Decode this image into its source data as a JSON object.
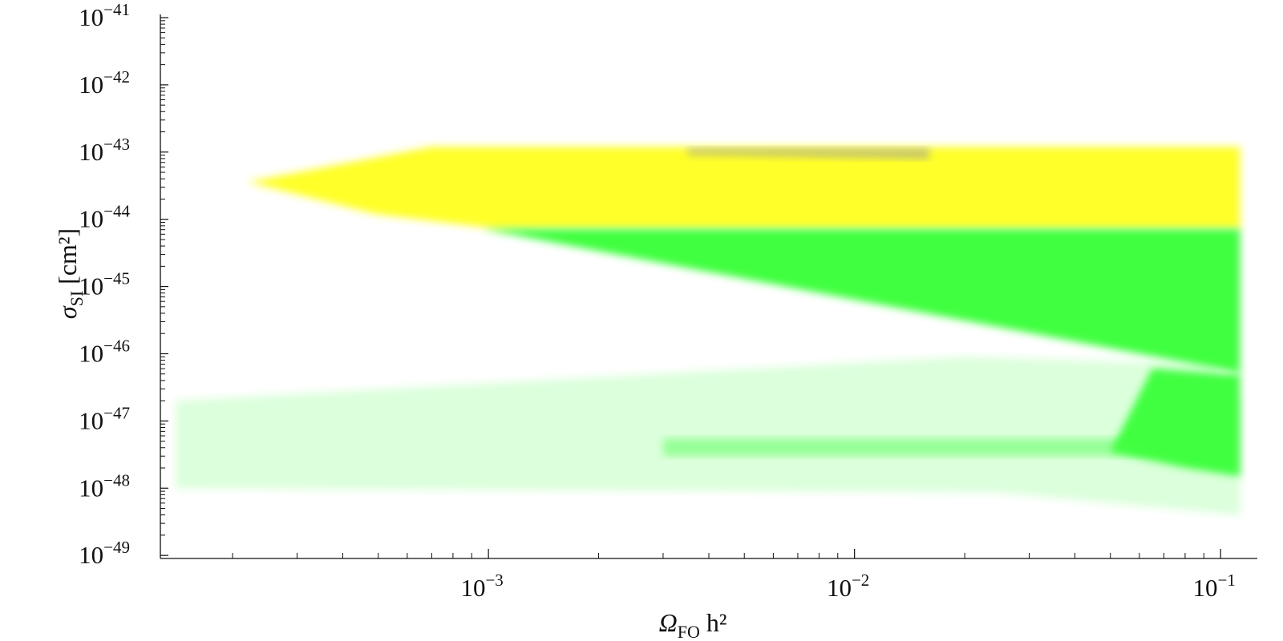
{
  "chart_data": {
    "type": "scatter",
    "x_label": "ΩFO h²",
    "y_label": "σSI [cm²]",
    "xscale": "log",
    "yscale": "log",
    "xlim": [
      0.000127,
      0.126
    ],
    "ylim": [
      9e-50,
      1e-41
    ],
    "xticks": [
      {
        "value": 0.001,
        "label": "10−3"
      },
      {
        "value": 0.01,
        "label": "10−2"
      },
      {
        "value": 0.1,
        "label": "10−1"
      }
    ],
    "yticks": [
      {
        "value": 1e-41,
        "label": "10−41"
      },
      {
        "value": 1e-42,
        "label": "10−42"
      },
      {
        "value": 1e-43,
        "label": "10−43"
      },
      {
        "value": 1e-44,
        "label": "10−44"
      },
      {
        "value": 1e-45,
        "label": "10−45"
      },
      {
        "value": 1e-46,
        "label": "10−46"
      },
      {
        "value": 1e-47,
        "label": "10−47"
      },
      {
        "value": 1e-48,
        "label": "10−48"
      },
      {
        "value": 1e-49,
        "label": "10−49"
      }
    ],
    "xminorticks": [
      0.0002,
      0.0003,
      0.0004,
      0.0005,
      0.0006,
      0.0007,
      0.0008,
      0.0009,
      0.002,
      0.003,
      0.004,
      0.005,
      0.006,
      0.007,
      0.008,
      0.009,
      0.02,
      0.03,
      0.04,
      0.05,
      0.06,
      0.07,
      0.08,
      0.09
    ],
    "yminorticks": [
      2e-49,
      3e-49,
      4e-49,
      5e-49,
      6e-49,
      7e-49,
      8e-49,
      9e-49,
      2e-48,
      3e-48,
      4e-48,
      5e-48,
      6e-48,
      7e-48,
      8e-48,
      9e-48,
      2e-47,
      3e-47,
      4e-47,
      5e-47,
      6e-47,
      7e-47,
      8e-47,
      9e-47,
      2e-46,
      3e-46,
      4e-46,
      5e-46,
      6e-46,
      7e-46,
      8e-46,
      9e-46,
      2e-45,
      3e-45,
      4e-45,
      5e-45,
      6e-45,
      7e-45,
      8e-45,
      9e-45,
      2e-44,
      3e-44,
      4e-44,
      5e-44,
      6e-44,
      7e-44,
      8e-44,
      9e-44,
      2e-43,
      3e-43,
      4e-43,
      5e-43,
      6e-43,
      7e-43,
      8e-43,
      9e-43,
      2e-42,
      3e-42,
      4e-42,
      5e-42,
      6e-42,
      7e-42,
      8e-42,
      9e-42
    ],
    "series": [
      {
        "color": "#3dff3d",
        "opacity": 0.18,
        "x": [
          0.00014,
          0.02,
          0.095,
          0.113,
          0.113,
          0.024,
          0.00014
        ],
        "values": [
          2e-47,
          9e-47,
          6.9e-47,
          2e-47,
          4e-49,
          8.7e-49,
          1e-48
        ]
      },
      {
        "color": "#ffff1e",
        "opacity": 0.95,
        "x": [
          0.00022,
          0.0007,
          0.113,
          0.113,
          0.00106,
          0.00049
        ],
        "values": [
          3.6e-44,
          1.2e-43,
          1.2e-43,
          7.2e-45,
          7.2e-45,
          1.2e-44
        ]
      },
      {
        "color": "#40ff40",
        "opacity": 1,
        "x": [
          0.00096,
          0.113,
          0.113,
          0.1
        ],
        "values": [
          7.2e-45,
          7.2e-45,
          5.1e-47,
          5.9e-47
        ]
      },
      {
        "color": "#40ff40",
        "opacity": 1,
        "x": [
          0.065,
          0.1,
          0.113,
          0.113,
          0.08,
          0.05
        ],
        "values": [
          6e-47,
          5e-47,
          5e-47,
          1.5e-48,
          2e-48,
          3.5e-48
        ]
      },
      {
        "color": "#40ff40",
        "opacity": 0.45,
        "x": [
          0.003,
          0.065,
          0.065,
          0.003
        ],
        "values": [
          5.5e-48,
          5.5e-48,
          3e-48,
          3e-48
        ]
      },
      {
        "color": "#9a9a9a",
        "opacity": 0.55,
        "x": [
          0.0035,
          0.016,
          0.016,
          0.0035
        ],
        "values": [
          1.15e-43,
          1.15e-43,
          7.8e-44,
          9e-44
        ]
      }
    ]
  }
}
